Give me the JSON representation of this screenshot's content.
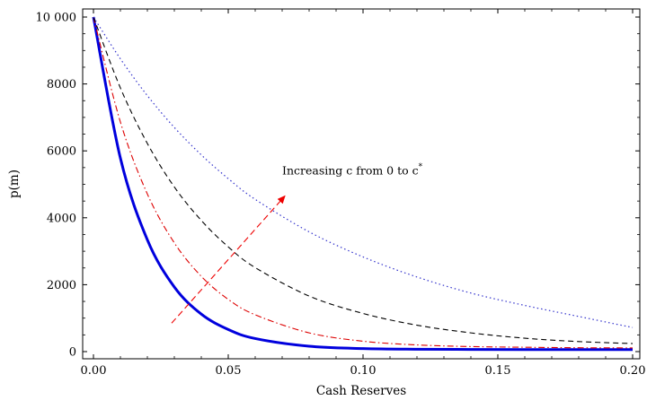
{
  "chart_data": {
    "type": "line",
    "title": "",
    "xlabel": "Cash Reserves",
    "ylabel": "p(m)",
    "xlim": [
      0,
      0.2
    ],
    "ylim": [
      0,
      10000
    ],
    "x_ticks": [
      0,
      0.05,
      0.1,
      0.15,
      0.2
    ],
    "x_tick_labels": [
      "0.00",
      "0.05",
      "0.10",
      "0.15",
      "0.20"
    ],
    "y_ticks": [
      0,
      2000,
      4000,
      6000,
      8000,
      10000
    ],
    "y_tick_labels": [
      "0",
      "2000",
      "4000",
      "6000",
      "8000",
      "10 000"
    ],
    "grid": false,
    "x": [
      0,
      0.01,
      0.02,
      0.03,
      0.04,
      0.05,
      0.06,
      0.08,
      0.1,
      0.12,
      0.14,
      0.16,
      0.18,
      0.2
    ],
    "series": [
      {
        "style": "solid-thick",
        "color": "#0000dd",
        "values": [
          10000,
          5780,
          3340,
          1930,
          1120,
          660,
          390,
          160,
          90,
          70,
          65,
          62,
          61,
          60
        ]
      },
      {
        "style": "dash-dot",
        "color": "#dd0000",
        "values": [
          10000,
          6860,
          4710,
          3250,
          2250,
          1560,
          1100,
          560,
          310,
          200,
          150,
          130,
          115,
          110
        ]
      },
      {
        "style": "dashed",
        "color": "#000000",
        "values": [
          10000,
          7880,
          6220,
          4920,
          3920,
          3130,
          2510,
          1660,
          1140,
          790,
          560,
          400,
          300,
          240
        ]
      },
      {
        "style": "dotted",
        "color": "#3333cc",
        "values": [
          10000,
          8750,
          7650,
          6700,
          5880,
          5170,
          4550,
          3580,
          2830,
          2230,
          1750,
          1380,
          1050,
          720
        ]
      }
    ],
    "annotation": {
      "text_main": "Increasing c from 0 to c",
      "text_sup": "*",
      "arrow_color": "#ee0000",
      "text_x": 0.07,
      "text_y": 5300,
      "arrow_from": [
        0.029,
        850
      ],
      "arrow_to": [
        0.071,
        4650
      ]
    }
  }
}
